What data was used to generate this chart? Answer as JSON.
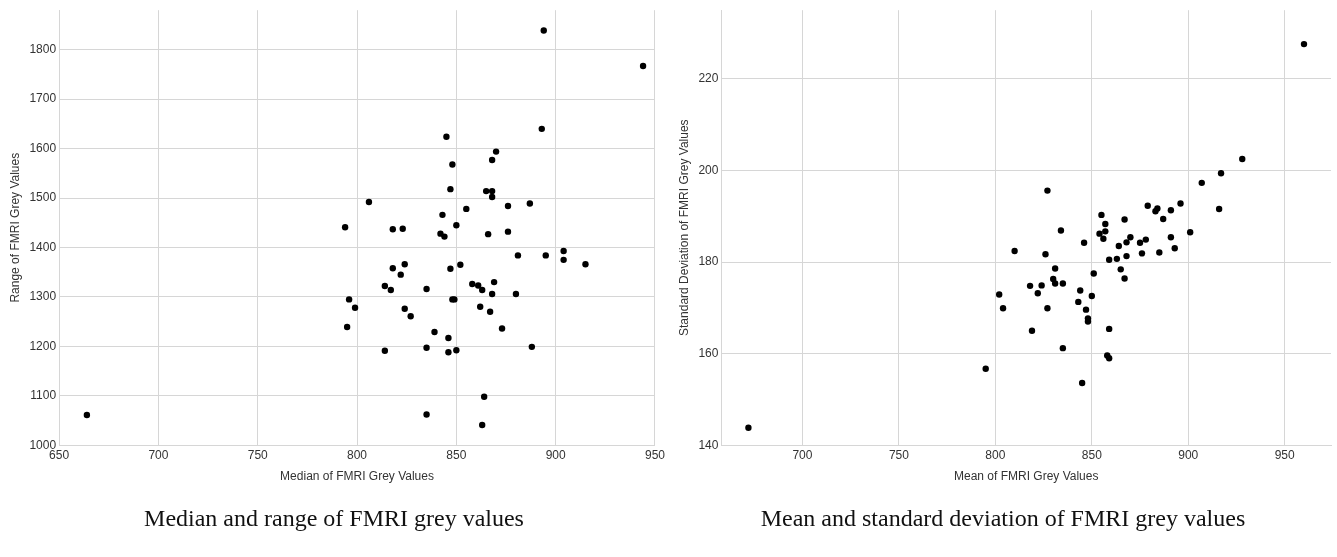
{
  "chart_data": [
    {
      "type": "scatter",
      "title": "Median and range of FMRI grey values",
      "xlabel": "Median of FMRI Grey Values",
      "ylabel": "Range of FMRI Grey Values",
      "xlim": [
        650,
        950
      ],
      "xticks": [
        650,
        700,
        750,
        800,
        850,
        900,
        950
      ],
      "ylim": [
        1000,
        1880
      ],
      "yticks": [
        1000,
        1100,
        1200,
        1300,
        1400,
        1500,
        1600,
        1700,
        1800
      ],
      "grid": true,
      "legend": false,
      "marker": "circle",
      "series": [
        {
          "color": "#000000",
          "x": [
            894,
            944,
            893,
            845,
            870,
            868,
            848,
            847,
            865,
            868,
            868,
            806,
            876,
            887,
            855,
            843,
            850,
            794,
            818,
            823,
            842,
            844,
            866,
            876,
            881,
            895,
            904,
            904,
            915,
            818,
            824,
            822,
            847,
            852,
            814,
            817,
            835,
            858,
            861,
            863,
            869,
            868,
            880,
            796,
            799,
            848,
            849,
            824,
            862,
            867,
            827,
            873,
            795,
            839,
            846,
            814,
            835,
            846,
            850,
            888,
            864,
            835,
            863,
            664
          ],
          "values": [
            1839,
            1767,
            1640,
            1624,
            1594,
            1577,
            1568,
            1518,
            1514,
            1514,
            1502,
            1492,
            1484,
            1489,
            1478,
            1466,
            1445,
            1441,
            1437,
            1438,
            1428,
            1422,
            1427,
            1432,
            1384,
            1384,
            1393,
            1375,
            1366,
            1358,
            1366,
            1345,
            1357,
            1365,
            1322,
            1314,
            1316,
            1326,
            1323,
            1314,
            1330,
            1306,
            1306,
            1295,
            1278,
            1295,
            1295,
            1276,
            1280,
            1270,
            1261,
            1236,
            1239,
            1229,
            1217,
            1191,
            1197,
            1188,
            1192,
            1199,
            1098,
            1062,
            1041,
            1061
          ]
        }
      ]
    },
    {
      "type": "scatter",
      "title": "Mean and standard deviation of FMRI grey values",
      "xlabel": "Mean of FMRI Grey Values",
      "ylabel": "Standard Deviation of FMRI Grey Values",
      "xlim": [
        658,
        974
      ],
      "xticks": [
        700,
        750,
        800,
        850,
        900,
        950
      ],
      "ylim": [
        140,
        235
      ],
      "yticks": [
        140,
        160,
        180,
        200,
        220
      ],
      "grid": true,
      "legend": false,
      "marker": "circle",
      "series": [
        {
          "color": "#000000",
          "x": [
            672,
            795,
            819,
            802,
            804,
            810,
            826,
            827,
            818,
            824,
            822,
            827,
            960,
            928,
            917,
            907,
            916,
            896,
            891,
            879,
            883,
            884,
            887,
            867,
            855,
            857,
            857,
            854,
            856,
            901,
            891,
            893,
            870,
            878,
            875,
            868,
            864,
            885,
            876,
            868,
            863,
            859,
            846,
            834,
            831,
            830,
            831,
            835,
            851,
            865,
            867,
            835,
            845,
            858,
            859,
            859,
            847,
            848,
            848,
            850,
            843,
            844
          ],
          "values": [
            143.8,
            156.7,
            165.0,
            172.9,
            169.9,
            182.4,
            181.7,
            195.6,
            174.8,
            174.9,
            173.2,
            169.9,
            227.6,
            202.5,
            199.4,
            197.3,
            191.6,
            192.8,
            191.3,
            192.3,
            191.1,
            191.7,
            189.4,
            189.3,
            190.3,
            188.3,
            186.7,
            186.2,
            185.1,
            186.5,
            185.4,
            183.0,
            185.4,
            184.9,
            184.2,
            184.3,
            183.5,
            182.1,
            181.9,
            181.3,
            180.7,
            180.5,
            184.2,
            186.9,
            178.6,
            176.3,
            175.3,
            175.3,
            177.5,
            178.4,
            176.4,
            161.2,
            153.6,
            159.6,
            159.0,
            165.4,
            169.6,
            167.7,
            167.0,
            172.6,
            171.3,
            173.8
          ]
        }
      ]
    }
  ]
}
